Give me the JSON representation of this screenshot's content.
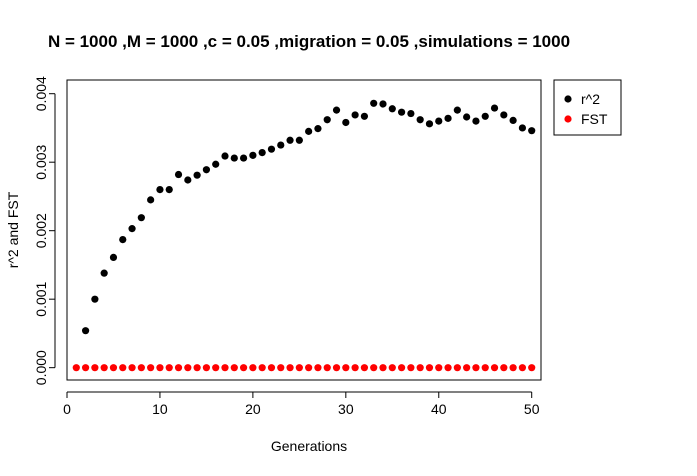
{
  "chart_data": {
    "type": "scatter",
    "title": "N = 1000 ,M = 1000 ,c = 0.05 ,migration = 0.05 ,simulations = 1000",
    "xlabel": "Generations",
    "ylabel": "r^2 and FST",
    "xlim": [
      0,
      51
    ],
    "ylim": [
      -0.00018,
      0.0042
    ],
    "x_ticks": [
      "0",
      "10",
      "20",
      "30",
      "40",
      "50"
    ],
    "y_ticks": [
      "0.000",
      "0.001",
      "0.002",
      "0.003",
      "0.004"
    ],
    "legend_position": "top-right-outside",
    "grid": false,
    "series": [
      {
        "name": "r^2",
        "color": "#000000",
        "x": [
          2,
          3,
          4,
          5,
          6,
          7,
          8,
          9,
          10,
          11,
          12,
          13,
          14,
          15,
          16,
          17,
          18,
          19,
          20,
          21,
          22,
          23,
          24,
          25,
          26,
          27,
          28,
          29,
          30,
          31,
          32,
          33,
          34,
          35,
          36,
          37,
          38,
          39,
          40,
          41,
          42,
          43,
          44,
          45,
          46,
          47,
          48,
          49,
          50
        ],
        "y": [
          0.00054,
          0.001,
          0.00138,
          0.00161,
          0.00187,
          0.00203,
          0.00219,
          0.00245,
          0.0026,
          0.0026,
          0.00282,
          0.00274,
          0.00281,
          0.00289,
          0.00297,
          0.00309,
          0.00306,
          0.00306,
          0.0031,
          0.00314,
          0.00319,
          0.00325,
          0.00332,
          0.00332,
          0.00345,
          0.00349,
          0.00362,
          0.00376,
          0.00358,
          0.00369,
          0.00367,
          0.00386,
          0.00385,
          0.00378,
          0.00373,
          0.00371,
          0.00362,
          0.00356,
          0.0036,
          0.00364,
          0.00376,
          0.00366,
          0.0036,
          0.00367,
          0.00379,
          0.00369,
          0.00361,
          0.0035,
          0.00346
        ]
      },
      {
        "name": "FST",
        "color": "#ff0000",
        "x": [
          1,
          2,
          3,
          4,
          5,
          6,
          7,
          8,
          9,
          10,
          11,
          12,
          13,
          14,
          15,
          16,
          17,
          18,
          19,
          20,
          21,
          22,
          23,
          24,
          25,
          26,
          27,
          28,
          29,
          30,
          31,
          32,
          33,
          34,
          35,
          36,
          37,
          38,
          39,
          40,
          41,
          42,
          43,
          44,
          45,
          46,
          47,
          48,
          49,
          50
        ],
        "y": [
          0,
          0,
          0,
          0,
          0,
          0,
          0,
          0,
          0,
          0,
          0,
          0,
          0,
          0,
          0,
          0,
          0,
          0,
          0,
          0,
          0,
          0,
          0,
          0,
          0,
          0,
          0,
          0,
          0,
          0,
          0,
          0,
          0,
          0,
          0,
          0,
          0,
          0,
          0,
          0,
          0,
          0,
          0,
          0,
          0,
          0,
          0,
          0,
          0,
          0
        ]
      }
    ]
  }
}
